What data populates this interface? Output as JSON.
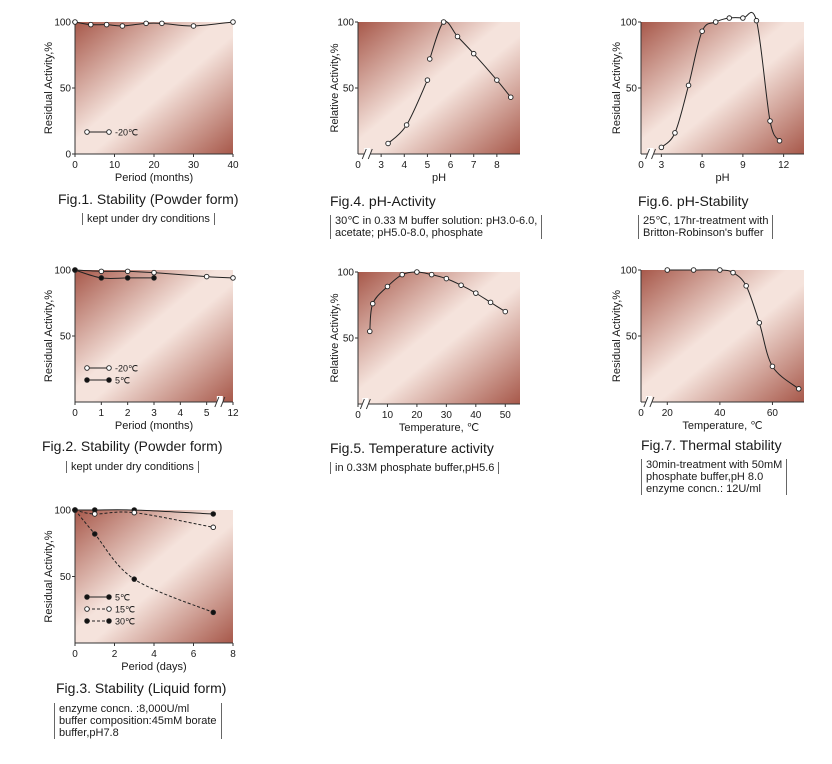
{
  "chart_data": [
    {
      "id": "fig1",
      "type": "line",
      "title": "Fig.1. Stability (Powder form)",
      "note": [
        "kept under dry conditions"
      ],
      "xlabel": "Period (months)",
      "ylabel": "Residual Activity,%",
      "xlim": [
        0,
        40
      ],
      "ylim": [
        0,
        100
      ],
      "xticks": [
        0,
        10,
        20,
        30,
        40
      ],
      "yticks": [
        0,
        50,
        100
      ],
      "legend": "bottom-left",
      "series": [
        {
          "name": "-20℃",
          "marker": "open",
          "style": "solid",
          "x": [
            0,
            4,
            8,
            12,
            18,
            22,
            30,
            40
          ],
          "y": [
            100,
            98,
            98,
            97,
            99,
            99,
            97,
            100
          ]
        }
      ]
    },
    {
      "id": "fig2",
      "type": "line",
      "title": "Fig.2. Stability (Powder form)",
      "note": [
        "kept under dry conditions"
      ],
      "xlabel": "Period (months)",
      "ylabel": "Residual Activity,%",
      "xlim": [
        0,
        6
      ],
      "ylim": [
        0,
        100
      ],
      "xticks": [
        0,
        1,
        2,
        3,
        4,
        5,
        6
      ],
      "xticklabels": [
        "0",
        "1",
        "2",
        "3",
        "4",
        "5",
        "12"
      ],
      "yticks": [
        50,
        100
      ],
      "axis_break": 5.5,
      "legend": "bottom-left",
      "series": [
        {
          "name": "-20℃",
          "marker": "open",
          "style": "solid",
          "x": [
            0,
            1,
            2,
            3,
            5,
            6
          ],
          "y": [
            100,
            99,
            99,
            98,
            95,
            94
          ]
        },
        {
          "name": "5℃",
          "marker": "filled",
          "style": "solid",
          "x": [
            0,
            1,
            2,
            3
          ],
          "y": [
            100,
            94,
            94,
            94
          ]
        }
      ]
    },
    {
      "id": "fig3",
      "type": "line",
      "title": "Fig.3. Stability (Liquid form)",
      "note": [
        "enzyme concn.     :8,000U/ml",
        "buffer composition:45mM borate",
        "buffer,pH7.8"
      ],
      "xlabel": "Period (days)",
      "ylabel": "Residual Activity,%",
      "xlim": [
        0,
        8
      ],
      "ylim": [
        0,
        100
      ],
      "xticks": [
        0,
        2,
        4,
        6,
        8
      ],
      "yticks": [
        50,
        100
      ],
      "legend": "bottom-left",
      "series": [
        {
          "name": "5℃",
          "marker": "filled",
          "style": "solid",
          "x": [
            0,
            1,
            3,
            7
          ],
          "y": [
            100,
            100,
            100,
            97
          ]
        },
        {
          "name": "15℃",
          "marker": "open",
          "style": "dashed",
          "x": [
            0,
            1,
            3,
            7
          ],
          "y": [
            100,
            97,
            98,
            87
          ]
        },
        {
          "name": "30℃",
          "marker": "filled",
          "style": "dashed",
          "x": [
            0,
            1,
            3,
            7
          ],
          "y": [
            100,
            82,
            48,
            23
          ]
        }
      ]
    },
    {
      "id": "fig4",
      "type": "line",
      "title": "Fig.4. pH-Activity",
      "note": [
        "30℃ in 0.33 M buffer solution: pH3.0-6.0,",
        "acetate; pH5.0-8.0, phosphate"
      ],
      "xlabel": "pH",
      "ylabel": "Relative Activity,%",
      "xlim": [
        2,
        9
      ],
      "ylim": [
        0,
        100
      ],
      "xticks": [
        3,
        4,
        5,
        6,
        7,
        8
      ],
      "yticks": [
        50,
        100
      ],
      "extra_ticklabels": [
        {
          "x": 2,
          "label": "0"
        }
      ],
      "axis_break": 2.4,
      "series": [
        {
          "name": "acetate",
          "marker": "open",
          "style": "solid",
          "x": [
            3.3,
            4.1,
            5.0
          ],
          "y": [
            8,
            22,
            56
          ]
        },
        {
          "name": "phosphate",
          "marker": "open",
          "style": "solid",
          "x": [
            5.1,
            5.7,
            6.3,
            7.0,
            8.0,
            8.6
          ],
          "y": [
            72,
            100,
            89,
            76,
            56,
            43
          ]
        }
      ]
    },
    {
      "id": "fig5",
      "type": "line",
      "title": "Fig.5. Temperature activity",
      "note": [
        "in 0.33M phosphate buffer,pH5.6"
      ],
      "xlabel": "Temperature, ℃",
      "ylabel": "Relative Activity,%",
      "xlim": [
        0,
        55
      ],
      "ylim": [
        0,
        100
      ],
      "xticks": [
        0,
        10,
        20,
        30,
        40,
        50
      ],
      "yticks": [
        50,
        100
      ],
      "axis_break": 2.5,
      "series": [
        {
          "name": "",
          "marker": "open",
          "style": "solid",
          "x": [
            4,
            5,
            10,
            15,
            20,
            25,
            30,
            35,
            40,
            45,
            50
          ],
          "y": [
            55,
            76,
            89,
            98,
            100,
            98,
            95,
            90,
            84,
            77,
            70
          ]
        }
      ]
    },
    {
      "id": "fig6",
      "type": "line",
      "title": "Fig.6. pH-Stability",
      "note": [
        "25℃, 17hr-treatment with",
        "Britton-Robinson's buffer"
      ],
      "xlabel": "pH",
      "ylabel": "Residual Activity,%",
      "xlim": [
        1.5,
        13.5
      ],
      "ylim": [
        0,
        100
      ],
      "xticks": [
        3,
        6,
        9,
        12
      ],
      "yticks": [
        50,
        100
      ],
      "extra_ticklabels": [
        {
          "x": 1.5,
          "label": "0"
        }
      ],
      "axis_break": 2.2,
      "series": [
        {
          "name": "",
          "marker": "open",
          "style": "solid",
          "x": [
            3.0,
            4.0,
            5.0,
            6.0,
            7.0,
            8.0,
            9.0,
            10.0,
            11.0,
            11.7
          ],
          "y": [
            5,
            16,
            52,
            93,
            100,
            103,
            103,
            101,
            25,
            10
          ]
        }
      ]
    },
    {
      "id": "fig7",
      "type": "line",
      "title": "Fig.7. Thermal stability",
      "note": [
        "30min-treatment with 50mM",
        "phosphate buffer,pH 8.0",
        "enzyme concn.: 12U/ml"
      ],
      "xlabel": "Temperature, ℃",
      "ylabel": "Residual Activity,%",
      "xlim": [
        10,
        72
      ],
      "ylim": [
        0,
        100
      ],
      "xticks": [
        20,
        40,
        60
      ],
      "yticks": [
        50,
        100
      ],
      "extra_ticklabels": [
        {
          "x": 10,
          "label": "0"
        }
      ],
      "axis_break": 13,
      "series": [
        {
          "name": "",
          "marker": "open",
          "style": "solid",
          "x": [
            20,
            30,
            40,
            45,
            50,
            55,
            60,
            70
          ],
          "y": [
            100,
            100,
            100,
            98,
            88,
            60,
            27,
            10
          ]
        }
      ]
    }
  ]
}
